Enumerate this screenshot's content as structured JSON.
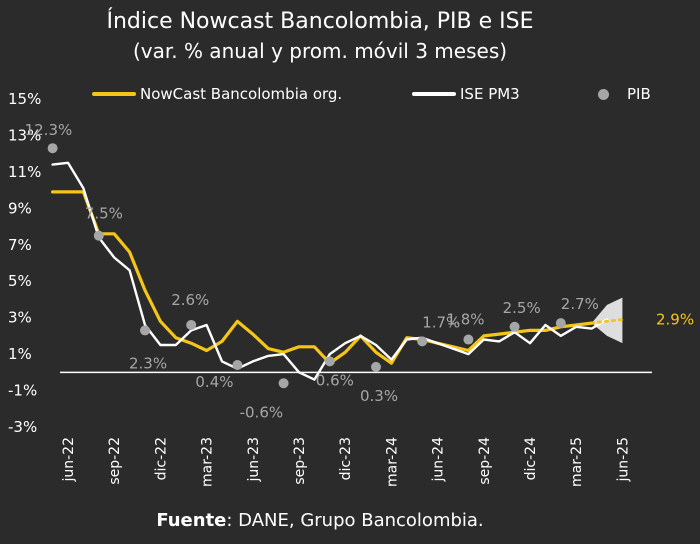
{
  "header": {
    "title": "Índice Nowcast Bancolombia, PIB e ISE",
    "subtitle": "(var. % anual y prom. móvil 3 meses)"
  },
  "legend": {
    "nowcast": "NowCast Bancolombia org.",
    "ise": "ISE PM3",
    "pib": "PIB"
  },
  "footer": {
    "source_label": "Fuente",
    "source_text": ": DANE, Grupo Bancolombia."
  },
  "colors": {
    "background": "#2b2b2b",
    "nowcast": "#f5c518",
    "ise": "#ffffff",
    "pib": "#a6a6a6",
    "text": "#ffffff",
    "annotation": "#a6a6a6"
  },
  "chart_data": {
    "type": "line",
    "y_ticks": [
      "15%",
      "13%",
      "11%",
      "9%",
      "7%",
      "5%",
      "3%",
      "1%",
      "-1%",
      "-3%"
    ],
    "ylim": [
      -3,
      15
    ],
    "x_tick_labels": [
      "jun-22",
      "sep-22",
      "dic-22",
      "mar-23",
      "jun-23",
      "sep-23",
      "dic-23",
      "mar-24",
      "jun-24",
      "sep-24",
      "dic-24",
      "mar-25",
      "jun-25"
    ],
    "months": [
      "may-22",
      "jun-22",
      "jul-22",
      "ago-22",
      "sep-22",
      "oct-22",
      "nov-22",
      "dic-22",
      "ene-23",
      "feb-23",
      "mar-23",
      "abr-23",
      "may-23",
      "jun-23",
      "jul-23",
      "ago-23",
      "sep-23",
      "oct-23",
      "nov-23",
      "dic-23",
      "ene-24",
      "feb-24",
      "mar-24",
      "abr-24",
      "may-24",
      "jun-24",
      "jul-24",
      "ago-24",
      "sep-24",
      "oct-24",
      "nov-24",
      "dic-24",
      "ene-25",
      "feb-25",
      "mar-25",
      "abr-25",
      "may-25",
      "jun-25"
    ],
    "series": [
      {
        "name": "NowCast Bancolombia org.",
        "values": [
          9.9,
          9.9,
          9.9,
          7.6,
          7.6,
          6.6,
          4.5,
          2.8,
          1.9,
          1.6,
          1.2,
          1.7,
          2.8,
          2.1,
          1.3,
          1.1,
          1.4,
          1.4,
          0.5,
          1.1,
          2.0,
          1.1,
          0.5,
          1.9,
          1.8,
          1.6,
          1.4,
          1.2,
          2.0,
          2.1,
          2.2,
          2.3,
          2.3,
          2.5,
          2.6,
          2.7,
          2.8,
          2.9
        ]
      },
      {
        "name": "ISE PM3",
        "values": [
          11.4,
          11.5,
          10.1,
          7.4,
          6.3,
          5.6,
          2.6,
          1.5,
          1.5,
          2.3,
          2.6,
          0.6,
          0.2,
          0.6,
          0.9,
          1.0,
          0.0,
          -0.4,
          1.0,
          1.6,
          2.0,
          1.5,
          0.7,
          1.8,
          1.9,
          1.6,
          1.3,
          1.0,
          1.8,
          1.7,
          2.2,
          1.6,
          2.6,
          2.0,
          2.5,
          2.4,
          2.9,
          null
        ]
      }
    ],
    "forecast": {
      "name": "NowCast Bancolombia org. (proyección)",
      "months": [
        "abr-25",
        "may-25",
        "jun-25"
      ],
      "values": [
        2.7,
        2.8,
        2.9
      ],
      "band_upper": [
        2.7,
        3.7,
        4.1
      ],
      "band_lower": [
        2.7,
        2.0,
        1.6
      ]
    },
    "pib_points": [
      {
        "month": "may-22",
        "value": 12.3,
        "label": "12.3%"
      },
      {
        "month": "ago-22",
        "value": 7.5,
        "label": "7.5%"
      },
      {
        "month": "nov-22",
        "value": 2.3,
        "label": "2.3%"
      },
      {
        "month": "feb-23",
        "value": 2.6,
        "label": "2.6%"
      },
      {
        "month": "may-23",
        "value": 0.4,
        "label": "0.4%"
      },
      {
        "month": "ago-23",
        "value": -0.6,
        "label": "-0.6%"
      },
      {
        "month": "nov-23",
        "value": 0.6,
        "label": "0.6%"
      },
      {
        "month": "feb-24",
        "value": 0.3,
        "label": "0.3%"
      },
      {
        "month": "may-24",
        "value": 1.7,
        "label": "1.7%"
      },
      {
        "month": "ago-24",
        "value": 1.8,
        "label": "1.8%"
      },
      {
        "month": "nov-24",
        "value": 2.5,
        "label": "2.5%"
      },
      {
        "month": "feb-25",
        "value": 2.7,
        "label": "2.7%"
      }
    ],
    "end_label": {
      "value": 2.9,
      "label": "2.9%"
    },
    "legend_position": "top"
  }
}
